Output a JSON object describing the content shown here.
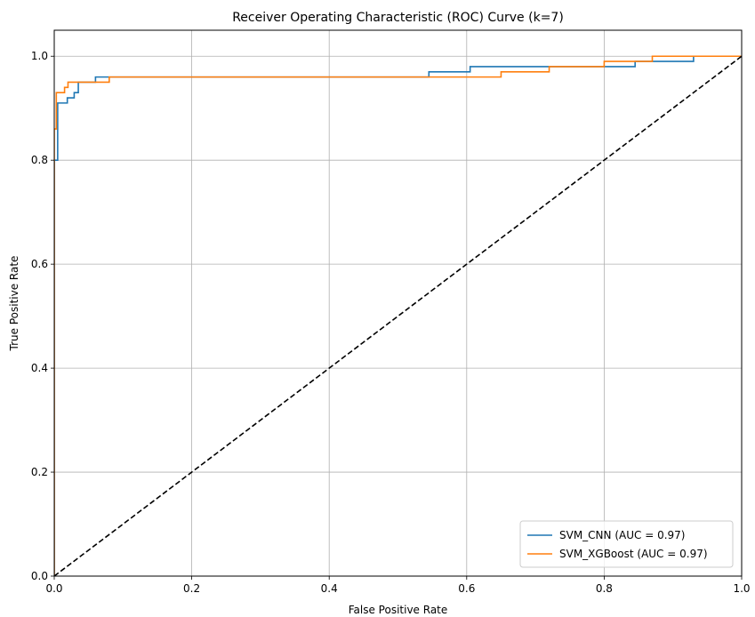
{
  "chart_data": {
    "type": "line",
    "title": "Receiver Operating Characteristic (ROC) Curve (k=7)",
    "xlabel": "False Positive Rate",
    "ylabel": "True Positive Rate",
    "xlim": [
      0.0,
      1.0
    ],
    "ylim": [
      0.0,
      1.05
    ],
    "xticks": [
      0.0,
      0.2,
      0.4,
      0.6,
      0.8,
      1.0
    ],
    "yticks": [
      0.0,
      0.2,
      0.4,
      0.6,
      0.8,
      1.0
    ],
    "xtick_labels": [
      "0.0",
      "0.2",
      "0.4",
      "0.6",
      "0.8",
      "1.0"
    ],
    "ytick_labels": [
      "0.0",
      "0.2",
      "0.4",
      "0.6",
      "0.8",
      "1.0"
    ],
    "grid": true,
    "legend_position": "lower-right",
    "series": [
      {
        "name": "SVM_CNN (AUC = 0.97)",
        "color": "#1f77b4",
        "style": "step",
        "x": [
          0.0,
          0.0,
          0.005,
          0.005,
          0.019,
          0.019,
          0.029,
          0.029,
          0.035,
          0.035,
          0.06,
          0.06,
          0.545,
          0.545,
          0.605,
          0.605,
          0.81,
          0.81,
          0.845,
          0.845,
          0.93,
          0.93,
          1.0
        ],
        "y": [
          0.0,
          0.8,
          0.8,
          0.91,
          0.91,
          0.92,
          0.92,
          0.93,
          0.93,
          0.95,
          0.95,
          0.96,
          0.96,
          0.97,
          0.97,
          0.98,
          0.98,
          0.98,
          0.98,
          0.99,
          0.99,
          1.0,
          1.0
        ]
      },
      {
        "name": "SVM_XGBoost (AUC = 0.97)",
        "color": "#ff7f0e",
        "style": "step",
        "x": [
          0.0,
          0.0,
          0.003,
          0.003,
          0.015,
          0.015,
          0.02,
          0.02,
          0.08,
          0.08,
          0.65,
          0.65,
          0.72,
          0.72,
          0.8,
          0.8,
          0.87,
          0.87,
          1.0
        ],
        "y": [
          0.0,
          0.86,
          0.86,
          0.93,
          0.93,
          0.94,
          0.94,
          0.95,
          0.95,
          0.96,
          0.96,
          0.97,
          0.97,
          0.98,
          0.98,
          0.99,
          0.99,
          1.0,
          1.0
        ]
      },
      {
        "name": "",
        "color": "#000000",
        "style": "dashed",
        "x": [
          0.0,
          1.0
        ],
        "y": [
          0.0,
          1.0
        ]
      }
    ]
  }
}
